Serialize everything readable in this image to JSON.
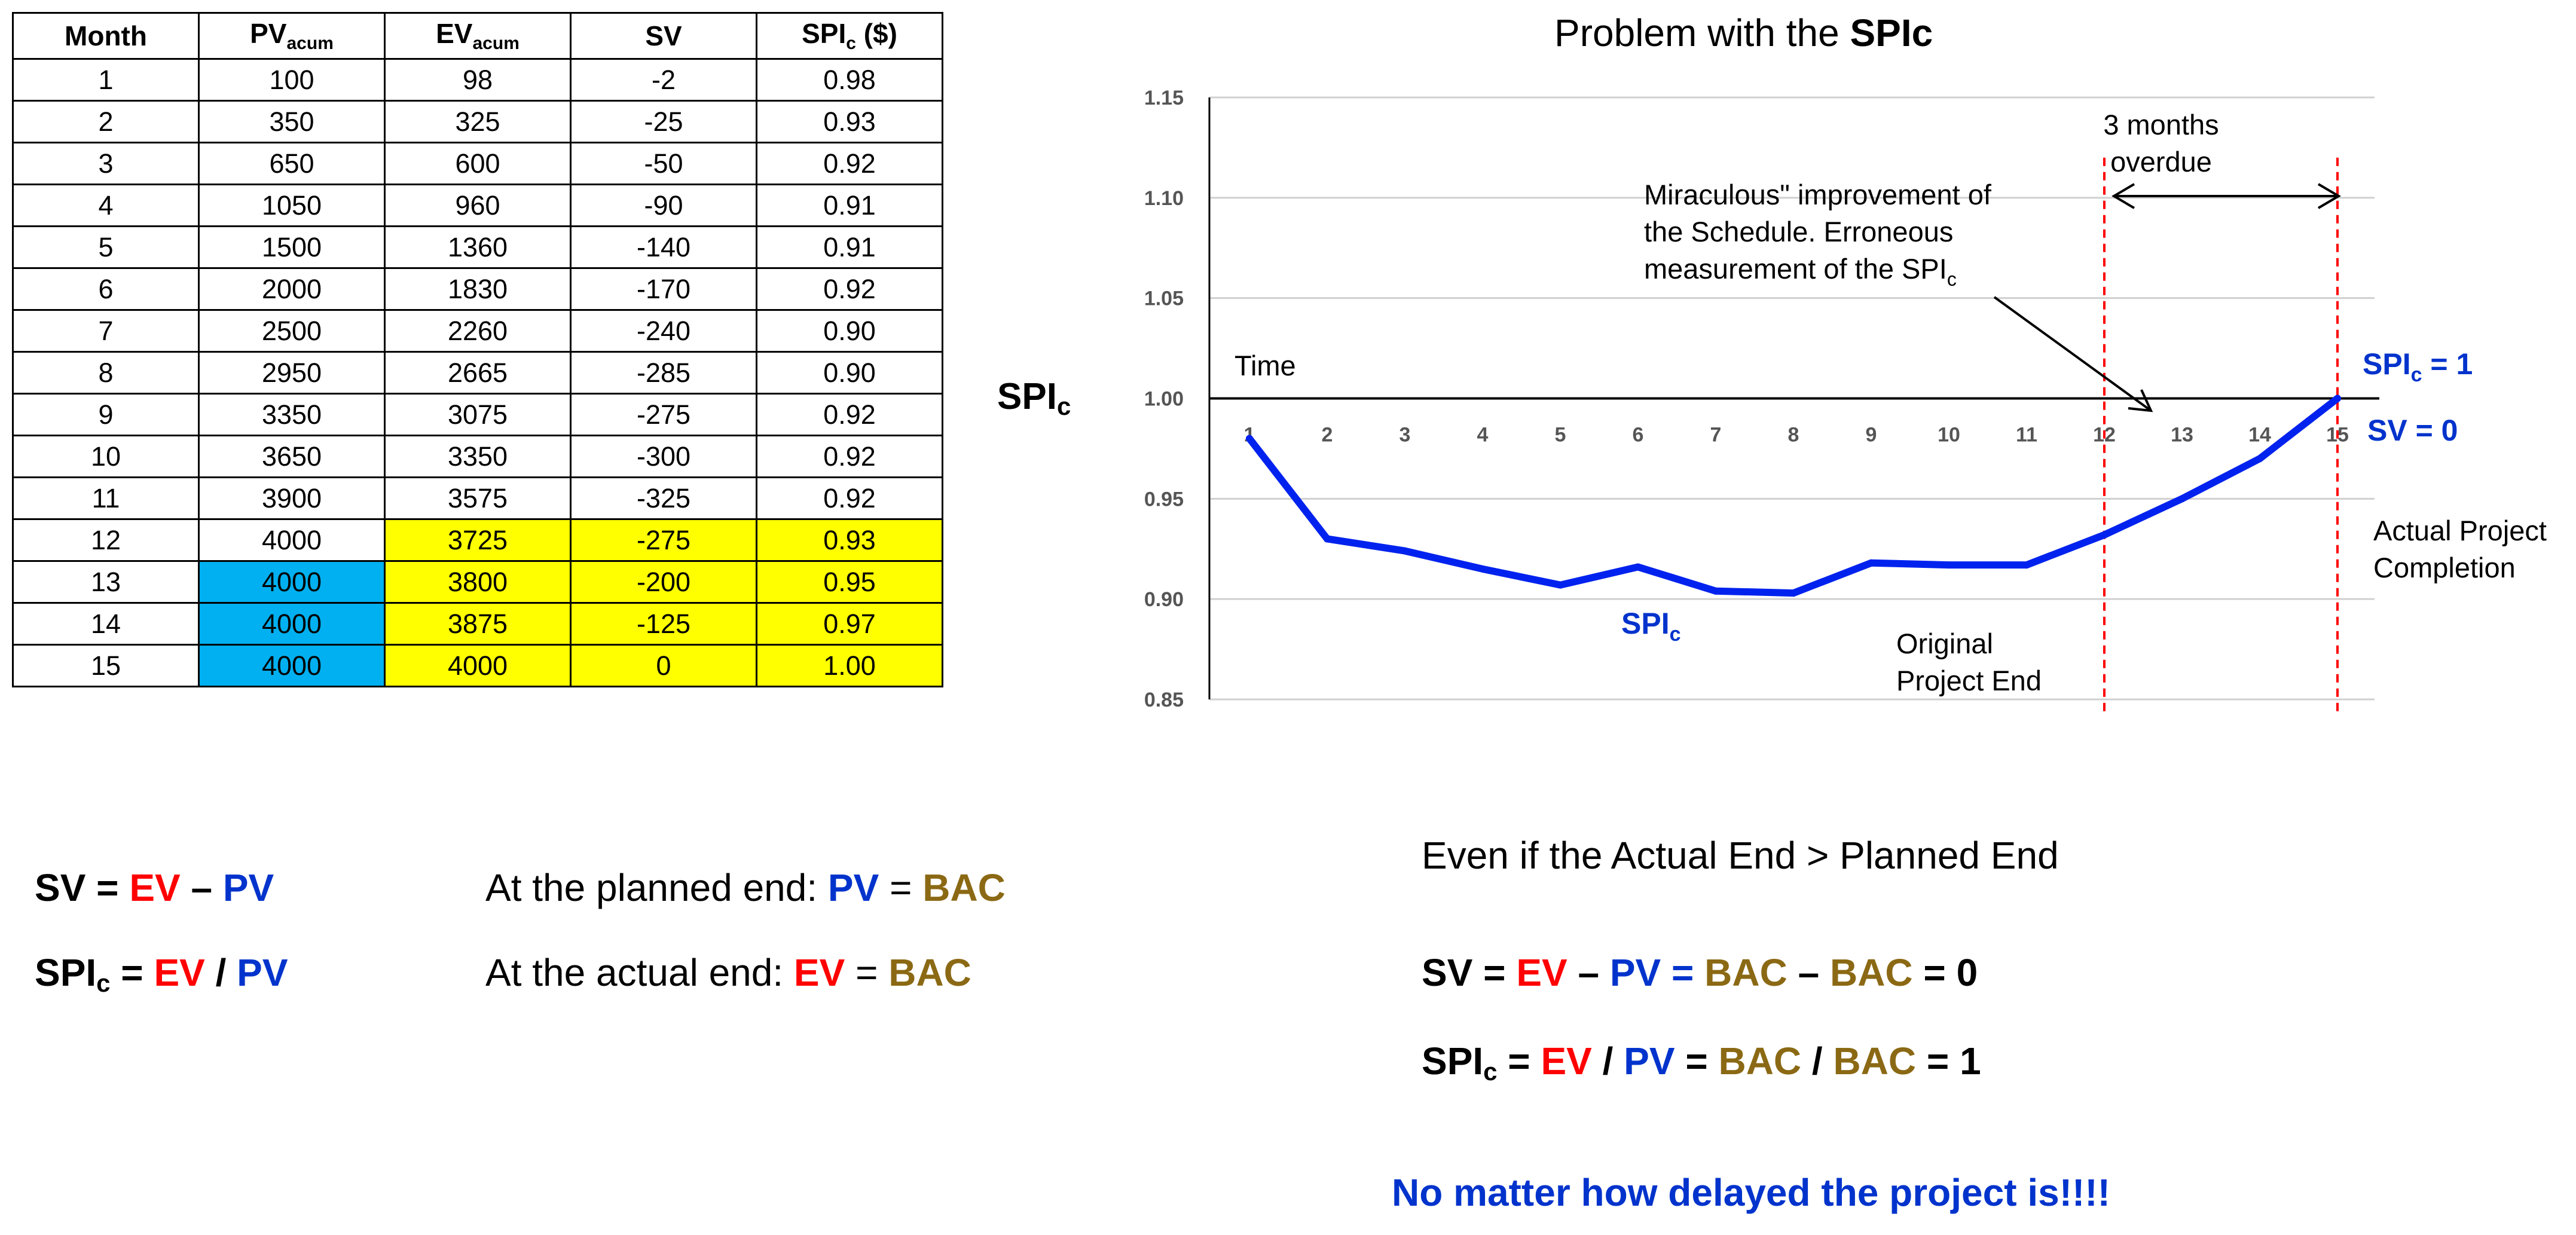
{
  "table": {
    "headers": [
      {
        "main": "Month",
        "sub": ""
      },
      {
        "main": "PV",
        "sub": "acum"
      },
      {
        "main": "EV",
        "sub": "acum"
      },
      {
        "main": "SV",
        "sub": ""
      },
      {
        "main": "SPI",
        "sub": "c",
        "suffix": " ($)"
      }
    ],
    "rows": [
      [
        "1",
        "100",
        "98",
        "-2",
        "0.98"
      ],
      [
        "2",
        "350",
        "325",
        "-25",
        "0.93"
      ],
      [
        "3",
        "650",
        "600",
        "-50",
        "0.92"
      ],
      [
        "4",
        "1050",
        "960",
        "-90",
        "0.91"
      ],
      [
        "5",
        "1500",
        "1360",
        "-140",
        "0.91"
      ],
      [
        "6",
        "2000",
        "1830",
        "-170",
        "0.92"
      ],
      [
        "7",
        "2500",
        "2260",
        "-240",
        "0.90"
      ],
      [
        "8",
        "2950",
        "2665",
        "-285",
        "0.90"
      ],
      [
        "9",
        "3350",
        "3075",
        "-275",
        "0.92"
      ],
      [
        "10",
        "3650",
        "3350",
        "-300",
        "0.92"
      ],
      [
        "11",
        "3900",
        "3575",
        "-325",
        "0.92"
      ],
      [
        "12",
        "4000",
        "3725",
        "-275",
        "0.93"
      ],
      [
        "13",
        "4000",
        "3800",
        "-200",
        "0.95"
      ],
      [
        "14",
        "4000",
        "3875",
        "-125",
        "0.97"
      ],
      [
        "15",
        "4000",
        "4000",
        "0",
        "1.00"
      ]
    ],
    "colors": {
      "yellow": "#ffff00",
      "blue": "#00b0f0"
    }
  },
  "side_label": {
    "main": "SPI",
    "sub": "c"
  },
  "chart_data": {
    "type": "line",
    "title_prefix": "Problem with the ",
    "title_bold": "SPIc",
    "x": [
      1,
      2,
      3,
      4,
      5,
      6,
      7,
      8,
      9,
      10,
      11,
      12,
      13,
      14,
      15
    ],
    "series": [
      {
        "name": "SPIc",
        "color": "#0022ee",
        "values": [
          0.98,
          0.93,
          0.924,
          0.915,
          0.907,
          0.916,
          0.904,
          0.903,
          0.918,
          0.917,
          0.917,
          0.932,
          0.95,
          0.97,
          1.0
        ]
      }
    ],
    "ylim": [
      0.85,
      1.15
    ],
    "yticks": [
      "1.15",
      "1.10",
      "1.05",
      "1.00",
      "0.95",
      "0.90",
      "0.85"
    ],
    "xticks": [
      "1",
      "2",
      "3",
      "4",
      "5",
      "6",
      "7",
      "8",
      "9",
      "10",
      "11",
      "12",
      "13",
      "14",
      "15"
    ],
    "axis_label_time": "Time",
    "series_label": {
      "main": "SPI",
      "sub": "c"
    },
    "vlines": [
      12,
      15
    ],
    "annotations": {
      "overdue": [
        "3 months",
        "overdue"
      ],
      "miraculous_line1": "Miraculous\" improvement of",
      "miraculous_line2": "the Schedule. Erroneous",
      "miraculous_line3": "measurement of the SPI",
      "miraculous_sub": "c",
      "original_end": [
        "Original",
        "Project End"
      ],
      "actual_completion": [
        "Actual Project",
        "Completion"
      ],
      "spi_eq": {
        "main": "SPI",
        "sub": "c",
        "rest": " = 1"
      },
      "sv_eq": "SV = 0"
    }
  },
  "formulas": {
    "sv_def": {
      "a": "SV = ",
      "ev": "EV",
      "dash": " – ",
      "pv": "PV"
    },
    "spi_def": {
      "a": "SPI",
      "sub": "c",
      "eq": " = ",
      "ev": "EV",
      "slash": " / ",
      "pv": "PV"
    },
    "planned_end": {
      "text": "At the planned end:  ",
      "pv": "PV",
      "eq": " = ",
      "bac": "BAC"
    },
    "actual_end": {
      "text": "At the actual end:  ",
      "ev": "EV",
      "eq": " = ",
      "bac": "BAC"
    },
    "even_if": "Even if the Actual End > Planned End",
    "sv_result": {
      "a": "SV = ",
      "ev": "EV",
      "dash": " – ",
      "pv": "PV",
      "eq": " = ",
      "bac1": "BAC",
      "dash2": " – ",
      "bac2": "BAC",
      "res": " = 0"
    },
    "spi_result": {
      "a": "SPI",
      "sub": "c",
      "eq": " = ",
      "ev": "EV",
      "slash": " / ",
      "pv": "PV",
      "eq2": " = ",
      "bac1": "BAC",
      "slash2": " / ",
      "bac2": "BAC",
      "res": " = 1"
    },
    "no_matter": "No matter how delayed the project is!!!!"
  }
}
